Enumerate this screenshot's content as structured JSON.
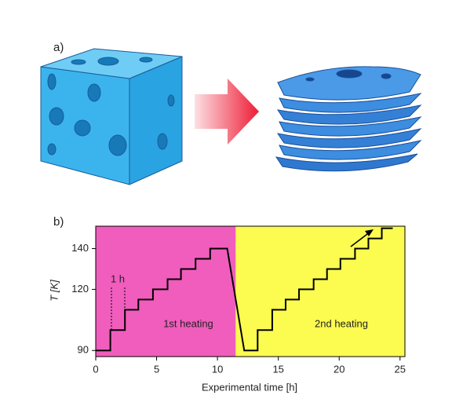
{
  "panel_a_label": "a)",
  "chart_data": {
    "type": "line",
    "panel_label": "b)",
    "xlabel": "Experimental time   [h]",
    "ylabel": "T   [K]",
    "xlim": [
      0,
      25.4
    ],
    "ylim": [
      87,
      151
    ],
    "xticks": [
      0,
      5,
      10,
      15,
      20,
      25
    ],
    "yticks": [
      90,
      120,
      140
    ],
    "regions": [
      {
        "label": "1st heating",
        "start": 0,
        "end": 11.5,
        "color": "#f05dbd"
      },
      {
        "label": "2nd heating",
        "start": 11.5,
        "end": 25.4,
        "color": "#fbfb50"
      }
    ],
    "annotation": "1 h",
    "series": [
      {
        "color": "#000000",
        "x": [
          0,
          1.2,
          1.2,
          2.4,
          2.4,
          3.5,
          3.5,
          4.7,
          4.7,
          5.9,
          5.9,
          7.0,
          7.0,
          8.2,
          8.2,
          9.4,
          9.4,
          10.8,
          12.2,
          13.3,
          13.3,
          14.5,
          14.5,
          15.6,
          15.6,
          16.7,
          16.7,
          17.9,
          17.9,
          19.0,
          19.0,
          20.1,
          20.1,
          21.3,
          21.3,
          22.4,
          22.4,
          23.5,
          23.5,
          24.4
        ],
        "values": [
          90,
          90,
          100,
          100,
          110,
          110,
          115,
          115,
          120,
          120,
          125,
          125,
          130,
          130,
          135,
          135,
          140,
          140,
          90,
          90,
          100,
          100,
          110,
          110,
          115,
          115,
          120,
          120,
          125,
          125,
          130,
          130,
          135,
          135,
          140,
          140,
          145,
          145,
          150,
          150
        ]
      }
    ]
  }
}
